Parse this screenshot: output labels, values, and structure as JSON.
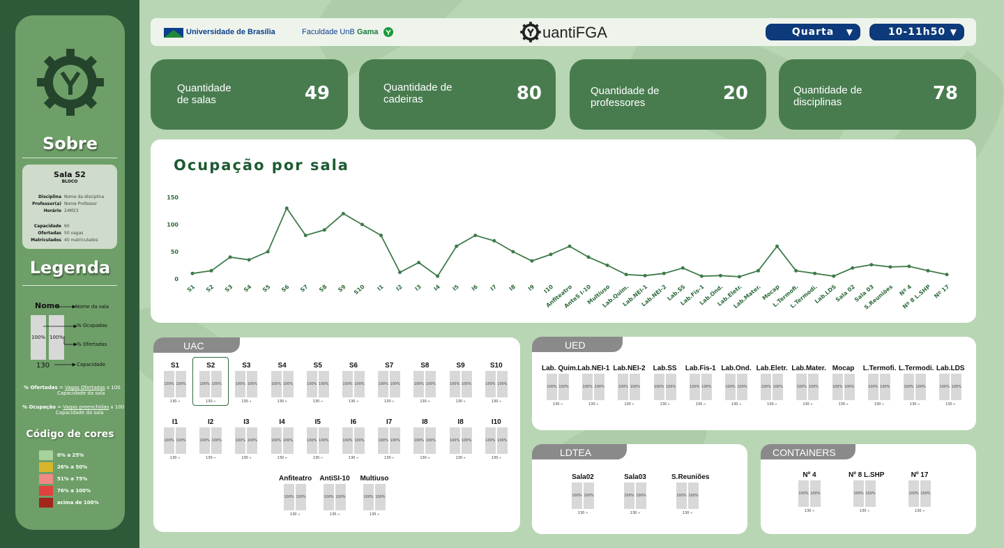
{
  "sidebar": {
    "about_title": "Sobre",
    "room_name": "Sala S2",
    "room_block": "BLOCO",
    "details": [
      {
        "k": "Disciplina",
        "v": "Nome da disciplina"
      },
      {
        "k": "Professor(a)",
        "v": "Nome Professor"
      },
      {
        "k": "Horário",
        "v": "24M23"
      }
    ],
    "details2": [
      {
        "k": "Capacidade",
        "v": "60"
      },
      {
        "k": "Ofertadas",
        "v": "50 vagas"
      },
      {
        "k": "Matriculados",
        "v": "40 matriculados"
      }
    ],
    "legend_title": "Legenda",
    "legend": {
      "name_word": "Nome",
      "name_desc": "Nome da sala",
      "occupied": "% Ocupadas",
      "offered": "% Ofertadas",
      "capacity": "Capacidade",
      "cap_value": "130",
      "pct": "100%"
    },
    "formula_offered_label": "% Ofertadas",
    "formula_offered_num": "Vagas Ofertadas",
    "formula_offered_den": "Capacidade da sala",
    "formula_occ_label": "% Ocupação",
    "formula_occ_num": "Vagas preenchidas",
    "formula_occ_den": "Capacidade da sala",
    "eq": "=",
    "times100": "x 100",
    "colors_title": "Código de cores",
    "colors": [
      {
        "label": "0% a 25%",
        "color": "#a7d39a"
      },
      {
        "label": "26% a 50%",
        "color": "#d7b52a"
      },
      {
        "label": "51% a 75%",
        "color": "#f08a85"
      },
      {
        "label": "76% a 100%",
        "color": "#e2413d"
      },
      {
        "label": "acima de 100%",
        "color": "#a3241c"
      }
    ]
  },
  "topbar": {
    "unb": "Universidade de Brasília",
    "faculty": "Faculdade UnB",
    "gama": "Gama",
    "app_title": "uantiFGA",
    "day": "Quarta",
    "time": "10-11h50"
  },
  "cards": [
    {
      "label1": "Quantidade",
      "label2": "de salas",
      "value": "49"
    },
    {
      "label1": "Quantidade de",
      "label2": "cadeiras",
      "value": "80"
    },
    {
      "label1": "Quantidade de",
      "label2": "professores",
      "value": "20"
    },
    {
      "label1": "Quantidade de",
      "label2": "disciplinas",
      "value": "78"
    }
  ],
  "chart_data": {
    "type": "line",
    "title": "Ocupação por sala",
    "ylim": [
      0,
      150
    ],
    "yticks": [
      0,
      50,
      100,
      150
    ],
    "color": "#3e7a4a",
    "categories": [
      "S1",
      "S2",
      "S3",
      "S4",
      "S5",
      "S6",
      "S7",
      "S8",
      "S9",
      "S10",
      "I1",
      "I2",
      "I3",
      "I4",
      "I5",
      "I6",
      "I7",
      "I8",
      "I9",
      "I10",
      "Anfiteatro",
      "AnteS I-10",
      "Multiuso",
      "Lab.Quim.",
      "Lab.NEI-1",
      "Lab.NEI-2",
      "Lab.SS",
      "Lab.Fis-1",
      "Lab.Ond.",
      "Lab.Eletr.",
      "Lab.Mater.",
      "Mocap",
      "L.Termofi.",
      "L.Termodi.",
      "Lab.LDS",
      "Sala 02",
      "Sala 03",
      "S.Reuniões",
      "Nº 4",
      "Nº 8 L.SHP",
      "Nº 17"
    ],
    "values": [
      10,
      15,
      40,
      35,
      50,
      130,
      80,
      90,
      120,
      100,
      80,
      12,
      30,
      5,
      60,
      80,
      70,
      50,
      33,
      45,
      60,
      40,
      25,
      8,
      6,
      10,
      20,
      5,
      6,
      4,
      15,
      60,
      15,
      10,
      5,
      20,
      26,
      22,
      23,
      15,
      8
    ]
  },
  "uac": {
    "title": "UAC",
    "row1": [
      "S1",
      "S2",
      "S3",
      "S4",
      "S5",
      "S6",
      "S7",
      "S8",
      "S9",
      "S10"
    ],
    "row2": [
      "I1",
      "I2",
      "I3",
      "I4",
      "I5",
      "I6",
      "I7",
      "I8",
      "I8",
      "I10"
    ],
    "row3": [
      "Anfiteatro",
      "AntiSI-10",
      "Multiuso"
    ]
  },
  "ued": {
    "title": "UED",
    "rooms": [
      "Lab. Quim.",
      "Lab.NEI-1",
      "Lab.NEI-2",
      "Lab.SS",
      "Lab.Fis-1",
      "Lab.Ond.",
      "Lab.Eletr.",
      "Lab.Mater.",
      "Mocap",
      "L.Termofi.",
      "L.Termodi.",
      "Lab.LDS"
    ]
  },
  "ldtea": {
    "title": "LDTEA",
    "rooms": [
      "Sala02",
      "Sala03",
      "S.Reuniões"
    ]
  },
  "containers": {
    "title": "CONTAINERS",
    "rooms": [
      "Nº 4",
      "Nº 8 L.SHP",
      "Nº 17"
    ]
  },
  "room_pct": "100%",
  "room_cap": "130",
  "chair": "⑁"
}
